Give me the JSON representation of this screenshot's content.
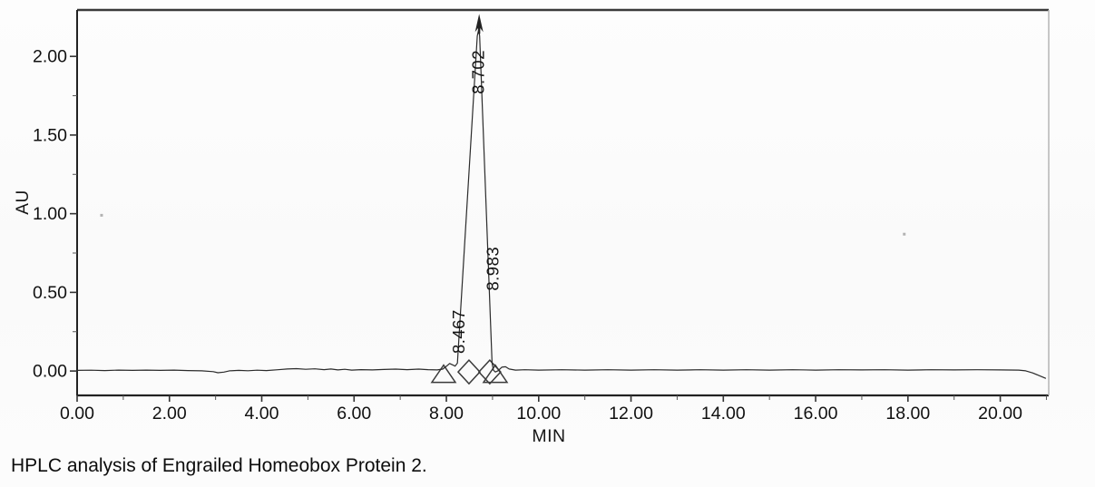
{
  "caption": "HPLC analysis of Engrailed Homeobox Protein 2.",
  "chart_data": {
    "type": "line",
    "title": "",
    "xlabel": "MIN",
    "ylabel": "AU",
    "xlim": [
      0,
      21.05
    ],
    "ylim": [
      -0.155,
      2.295
    ],
    "grid": false,
    "legend": "none",
    "x_ticks": [
      {
        "v": 0,
        "label": "0.00"
      },
      {
        "v": 2,
        "label": "2.00"
      },
      {
        "v": 4,
        "label": "4.00"
      },
      {
        "v": 6,
        "label": "6.00"
      },
      {
        "v": 8,
        "label": "8.00"
      },
      {
        "v": 10,
        "label": "10.00"
      },
      {
        "v": 12,
        "label": "12.00"
      },
      {
        "v": 14,
        "label": "14.00"
      },
      {
        "v": 16,
        "label": "16.00"
      },
      {
        "v": 18,
        "label": "18.00"
      },
      {
        "v": 20,
        "label": "20.00"
      }
    ],
    "x_minor_ticks": [
      1,
      3,
      5,
      7,
      9,
      11,
      13,
      15,
      17,
      19,
      21
    ],
    "y_ticks": [
      {
        "v": 0.0,
        "label": "0.00"
      },
      {
        "v": 0.5,
        "label": "0.50"
      },
      {
        "v": 1.0,
        "label": "1.00"
      },
      {
        "v": 1.5,
        "label": "1.50"
      },
      {
        "v": 2.0,
        "label": "2.00"
      }
    ],
    "y_minor_ticks": [
      0.25,
      0.75,
      1.25,
      1.75
    ],
    "peaks": [
      {
        "label": "8.467",
        "rt_min": 8.467,
        "anchor_min": 8.39,
        "anchor_au": 0.11,
        "offscale": false
      },
      {
        "label": "8.702",
        "rt_min": 8.702,
        "anchor_min": 8.82,
        "anchor_au": 1.76,
        "offscale": true
      },
      {
        "label": "8.983",
        "rt_min": 8.983,
        "anchor_min": 9.13,
        "anchor_au": 0.51,
        "offscale": false
      }
    ],
    "offscale_arrow": {
      "x_min": 8.71,
      "tip_au": 2.27
    },
    "integration_markers": [
      {
        "shape": "triangle",
        "x_min": 7.94
      },
      {
        "shape": "diamond",
        "x_min": 8.49
      },
      {
        "shape": "diamond",
        "x_min": 8.94
      },
      {
        "shape": "triangle",
        "x_min": 9.06
      }
    ],
    "artifact_specks": [
      {
        "x_min": 17.92,
        "au": 0.87
      },
      {
        "x_min": 0.53,
        "au": 0.99
      }
    ],
    "trace": [
      [
        0.0,
        0.004
      ],
      [
        0.3,
        0.005
      ],
      [
        0.6,
        0.003
      ],
      [
        0.9,
        0.006
      ],
      [
        1.2,
        0.004
      ],
      [
        1.5,
        0.006
      ],
      [
        1.8,
        0.004
      ],
      [
        2.1,
        0.006
      ],
      [
        2.4,
        0.003
      ],
      [
        2.7,
        0.001
      ],
      [
        2.95,
        -0.004
      ],
      [
        3.05,
        -0.011
      ],
      [
        3.18,
        -0.007
      ],
      [
        3.3,
        0.001
      ],
      [
        3.5,
        0.004
      ],
      [
        3.7,
        0.002
      ],
      [
        3.9,
        0.005
      ],
      [
        4.1,
        0.003
      ],
      [
        4.35,
        0.008
      ],
      [
        4.55,
        0.013
      ],
      [
        4.75,
        0.015
      ],
      [
        4.95,
        0.011
      ],
      [
        5.15,
        0.014
      ],
      [
        5.35,
        0.009
      ],
      [
        5.5,
        0.013
      ],
      [
        5.65,
        0.007
      ],
      [
        5.8,
        0.011
      ],
      [
        5.95,
        0.006
      ],
      [
        6.15,
        0.009
      ],
      [
        6.4,
        0.007
      ],
      [
        6.65,
        0.01
      ],
      [
        6.9,
        0.012
      ],
      [
        7.15,
        0.009
      ],
      [
        7.4,
        0.012
      ],
      [
        7.6,
        0.009
      ],
      [
        7.8,
        0.007
      ],
      [
        7.92,
        0.012
      ],
      [
        8.0,
        0.03
      ],
      [
        8.07,
        0.048
      ],
      [
        8.13,
        0.04
      ],
      [
        8.19,
        0.031
      ],
      [
        8.24,
        0.05
      ],
      [
        8.67,
        2.13
      ],
      [
        8.7,
        2.17
      ],
      [
        8.72,
        2.13
      ],
      [
        8.99,
        0.05
      ],
      [
        9.02,
        0.005
      ],
      [
        9.06,
        -0.006
      ],
      [
        9.12,
        0.002
      ],
      [
        9.2,
        0.024
      ],
      [
        9.28,
        0.027
      ],
      [
        9.36,
        0.013
      ],
      [
        9.5,
        0.006
      ],
      [
        9.7,
        0.008
      ],
      [
        10.0,
        0.006
      ],
      [
        10.5,
        0.008
      ],
      [
        11.0,
        0.006
      ],
      [
        11.5,
        0.008
      ],
      [
        12.0,
        0.006
      ],
      [
        12.5,
        0.008
      ],
      [
        13.0,
        0.006
      ],
      [
        13.5,
        0.008
      ],
      [
        14.0,
        0.006
      ],
      [
        14.5,
        0.008
      ],
      [
        15.0,
        0.006
      ],
      [
        15.5,
        0.008
      ],
      [
        16.0,
        0.006
      ],
      [
        16.5,
        0.008
      ],
      [
        17.0,
        0.007
      ],
      [
        17.5,
        0.008
      ],
      [
        18.0,
        0.006
      ],
      [
        18.5,
        0.008
      ],
      [
        19.0,
        0.007
      ],
      [
        19.5,
        0.008
      ],
      [
        20.0,
        0.007
      ],
      [
        20.4,
        0.006
      ],
      [
        20.55,
        0.001
      ],
      [
        20.7,
        -0.012
      ],
      [
        20.85,
        -0.03
      ],
      [
        20.98,
        -0.046
      ]
    ],
    "colors": {
      "trace": "#2b2b2b",
      "axis": "#222222",
      "frame_right": "#b5b5b5",
      "text": "#111111"
    }
  }
}
